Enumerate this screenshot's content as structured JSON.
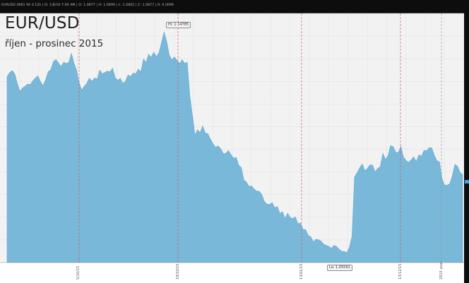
{
  "header": {
    "info_text": "EURUSD (BID) 90 d 12h  |  D: 1/8/16 7:00 AM  |  O: 1.0877  |  H: 1.0899  |  L: 1.0802  |  C: 1.0877  |  R: 0.0096"
  },
  "chart_data": {
    "type": "area",
    "title": "EUR/USD",
    "subtitle": "říjen - prosinec 2015",
    "xlabel": "",
    "ylabel": "",
    "grid": true,
    "ylim": [
      1.0519,
      1.1534
    ],
    "x_tick_labels": [
      "5/10/15",
      "19/10/15",
      "13/01/15",
      "13/12/15",
      "2015 year"
    ],
    "annotations": {
      "high": "Hi: 1.14785",
      "low": "Lo: 1.05591"
    },
    "high_value": 1.14785,
    "low_value": 1.05591,
    "values": [
      1.1276,
      1.1293,
      1.1301,
      1.1287,
      1.1248,
      1.1216,
      1.123,
      1.1237,
      1.1246,
      1.1244,
      1.1259,
      1.1271,
      1.1279,
      1.1255,
      1.1239,
      1.1264,
      1.1297,
      1.1304,
      1.1338,
      1.1346,
      1.1332,
      1.1318,
      1.1335,
      1.133,
      1.1334,
      1.1371,
      1.1331,
      1.1303,
      1.1251,
      1.1221,
      1.1237,
      1.125,
      1.127,
      1.1257,
      1.1271,
      1.1266,
      1.1303,
      1.1288,
      1.1293,
      1.1299,
      1.1296,
      1.1311,
      1.1272,
      1.1262,
      1.1269,
      1.1248,
      1.1258,
      1.1283,
      1.1277,
      1.1291,
      1.1288,
      1.1307,
      1.1296,
      1.1348,
      1.1334,
      1.1367,
      1.1355,
      1.1376,
      1.1358,
      1.1373,
      1.1414,
      1.1458,
      1.1421,
      1.1365,
      1.1344,
      1.1357,
      1.1343,
      1.1329,
      1.1345,
      1.133,
      1.1335,
      1.1199,
      1.112,
      1.1037,
      1.106,
      1.1048,
      1.1075,
      1.1047,
      1.1044,
      1.1022,
      1.1003,
      1.0988,
      1.0994,
      1.0982,
      1.0963,
      1.0964,
      1.0975,
      1.0958,
      1.0944,
      1.0947,
      1.0915,
      1.0906,
      1.0855,
      1.0847,
      1.0829,
      1.0831,
      1.0818,
      1.081,
      1.0809,
      1.0795,
      1.0767,
      1.0757,
      1.0756,
      1.0763,
      1.0742,
      1.0747,
      1.0719,
      1.0726,
      1.0698,
      1.072,
      1.0702,
      1.0698,
      1.0705,
      1.0677,
      1.068,
      1.0654,
      1.0653,
      1.0629,
      1.0624,
      1.0603,
      1.0614,
      1.0612,
      1.0606,
      1.0594,
      1.0589,
      1.0585,
      1.0577,
      1.0589,
      1.0584,
      1.0573,
      1.0565,
      1.0564,
      1.0559,
      1.0581,
      1.0624,
      1.0867,
      1.0885,
      1.0905,
      1.0921,
      1.0893,
      1.0902,
      1.0917,
      1.0916,
      1.0888,
      1.0903,
      1.0909,
      1.0964,
      1.0939,
      1.0954,
      1.0995,
      1.0991,
      1.0968,
      1.0967,
      1.0992,
      1.0949,
      1.0935,
      1.0927,
      1.0937,
      1.095,
      1.093,
      1.0958,
      1.0951,
      1.0976,
      1.0974,
      1.0987,
      1.0986,
      1.0956,
      1.0934,
      1.0929,
      1.086,
      1.0834,
      1.0834,
      1.084,
      1.0873,
      1.0919,
      1.0911,
      1.0886,
      1.0877
    ]
  }
}
